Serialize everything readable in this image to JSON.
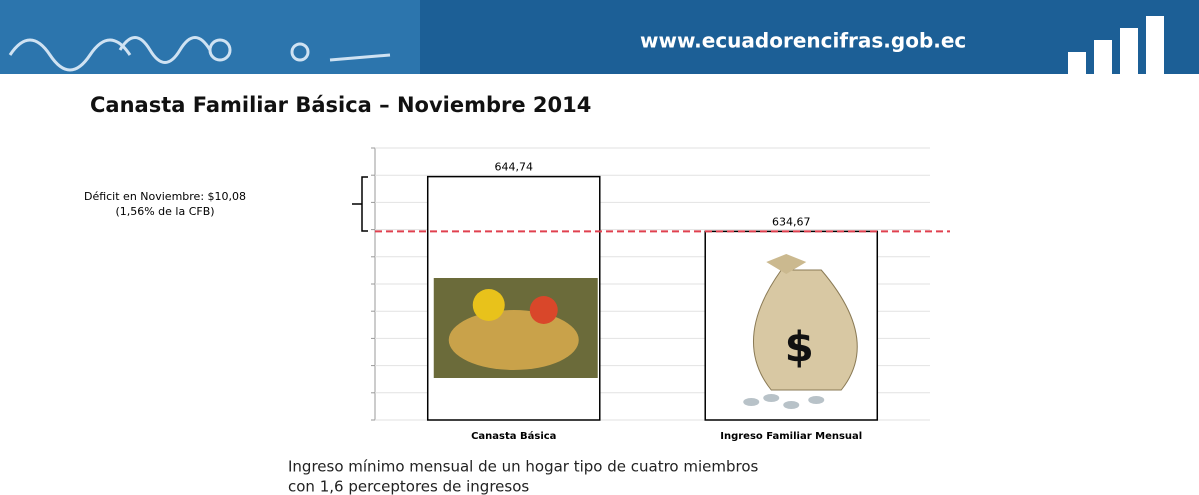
{
  "header": {
    "url": "www.ecuadorencifras.gob.ec"
  },
  "chart_data": {
    "type": "bar",
    "title": "Canasta Familiar Básica – Noviembre 2014",
    "categories": [
      "Canasta Básica",
      "Ingreso Familiar Mensual"
    ],
    "values": [
      644.74,
      634.67
    ],
    "value_labels": [
      "644,74",
      "634,67"
    ],
    "color": "#ffffff",
    "edge_color": "#000000",
    "reference_color": "#e0404f",
    "ylim": [
      600,
      650
    ],
    "yticks": [
      600,
      605,
      610,
      615,
      620,
      625,
      630,
      635,
      640,
      645,
      650
    ],
    "grid": true,
    "annotations": [
      "Déficit en Noviembre: $10,08",
      "(1,56% de la CFB)"
    ],
    "note": [
      "Ingreso mínimo mensual de un hogar tipo de cuatro miembros",
      "con 1,6 perceptores de ingresos"
    ]
  }
}
